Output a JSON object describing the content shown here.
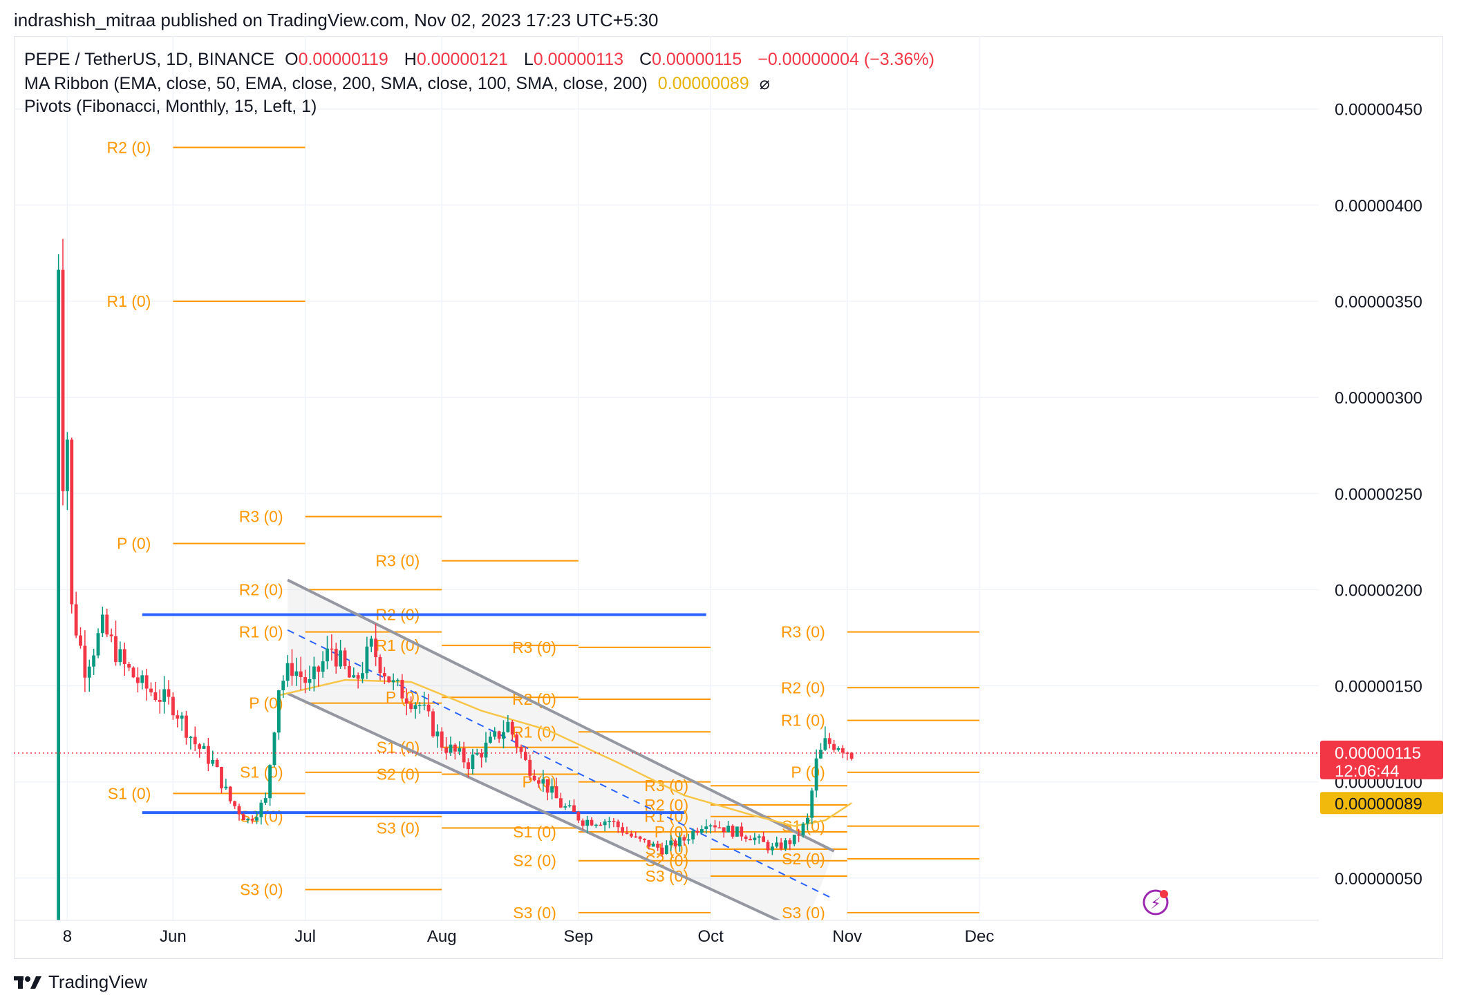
{
  "header": "indrashish_mitraa published on TradingView.com, Nov 02, 2023 17:23 UTC+5:30",
  "legend": {
    "symbol": "PEPE / TetherUS, 1D, BINANCE",
    "o_label": "O",
    "o": "0.00000119",
    "h_label": "H",
    "h": "0.00000121",
    "l_label": "L",
    "l": "0.00000113",
    "c_label": "C",
    "c": "0.00000115",
    "change": "−0.00000004 (−3.36%)",
    "ma": "MA Ribbon (EMA, close, 50, EMA, close, 200, SMA, close, 100, SMA, close, 200)",
    "ma_value": "0.00000089",
    "ma_symbol": "⌀",
    "pivots": "Pivots (Fibonacci, Monthly, 15, Left, 1)"
  },
  "footer": {
    "brand": "TradingView"
  },
  "colors": {
    "up": "#089981",
    "down": "#f23645",
    "pivot": "#ff9800",
    "ma": "#f7c548",
    "channel": "#9598a1",
    "blue": "#2962ff",
    "price_tag": "#f23645",
    "ma_tag": "#f0b90b"
  },
  "chart_data": {
    "type": "candlestick",
    "title": "PEPE / TetherUS, 1D, BINANCE",
    "x_labels": [
      {
        "label": "8",
        "date": "2023-05-08"
      },
      {
        "label": "Jun",
        "date": "2023-06-01"
      },
      {
        "label": "Jul",
        "date": "2023-07-01"
      },
      {
        "label": "Aug",
        "date": "2023-08-01"
      },
      {
        "label": "Sep",
        "date": "2023-09-01"
      },
      {
        "label": "Oct",
        "date": "2023-10-01"
      },
      {
        "label": "Nov",
        "date": "2023-11-01"
      },
      {
        "label": "Dec",
        "date": "2023-12-01"
      }
    ],
    "y_ticks": [
      "0.00000050",
      "0.00000100",
      "0.00000150",
      "0.00000200",
      "0.00000250",
      "0.00000300",
      "0.00000350",
      "0.00000400",
      "0.00000450"
    ],
    "ylim": [
      2.8e-07,
      4.88e-06
    ],
    "xlim": [
      "2023-04-29",
      "2023-12-01"
    ],
    "grid": true,
    "close_path": [
      [
        "2023-05-05",
        2e-07
      ],
      [
        "2023-05-06",
        3.74e-06
      ],
      [
        "2023-05-07",
        2.6e-06
      ],
      [
        "2023-05-08",
        2.8e-06
      ],
      [
        "2023-05-09",
        1.9e-06
      ],
      [
        "2023-05-12",
        1.6e-06
      ],
      [
        "2023-05-16",
        1.8e-06
      ],
      [
        "2023-05-21",
        1.6e-06
      ],
      [
        "2023-05-25",
        1.5e-06
      ],
      [
        "2023-06-01",
        1.4e-06
      ],
      [
        "2023-06-06",
        1.2e-06
      ],
      [
        "2023-06-10",
        1.1e-06
      ],
      [
        "2023-06-14",
        9e-07
      ],
      [
        "2023-06-18",
        8e-07
      ],
      [
        "2023-06-22",
        9e-07
      ],
      [
        "2023-06-25",
        1.5e-06
      ],
      [
        "2023-06-28",
        1.6e-06
      ],
      [
        "2023-07-02",
        1.5e-06
      ],
      [
        "2023-07-07",
        1.7e-06
      ],
      [
        "2023-07-12",
        1.5e-06
      ],
      [
        "2023-07-16",
        1.7e-06
      ],
      [
        "2023-07-21",
        1.5e-06
      ],
      [
        "2023-07-27",
        1.4e-06
      ],
      [
        "2023-08-01",
        1.2e-06
      ],
      [
        "2023-08-07",
        1.1e-06
      ],
      [
        "2023-08-12",
        1.2e-06
      ],
      [
        "2023-08-16",
        1.3e-06
      ],
      [
        "2023-08-20",
        1.1e-06
      ],
      [
        "2023-08-24",
        1e-06
      ],
      [
        "2023-08-28",
        8.8e-07
      ],
      [
        "2023-09-02",
        8e-07
      ],
      [
        "2023-09-08",
        8e-07
      ],
      [
        "2023-09-14",
        7e-07
      ],
      [
        "2023-09-20",
        6.5e-07
      ],
      [
        "2023-09-25",
        7e-07
      ],
      [
        "2023-09-30",
        8e-07
      ],
      [
        "2023-10-05",
        7.5e-07
      ],
      [
        "2023-10-10",
        7.2e-07
      ],
      [
        "2023-10-15",
        6.5e-07
      ],
      [
        "2023-10-20",
        7e-07
      ],
      [
        "2023-10-23",
        8e-07
      ],
      [
        "2023-10-25",
        1.1e-06
      ],
      [
        "2023-10-27",
        1.2e-06
      ],
      [
        "2023-10-30",
        1.2e-06
      ],
      [
        "2023-11-02",
        1.15e-06
      ]
    ],
    "ma_path": [
      [
        "2023-06-25",
        1.45e-06
      ],
      [
        "2023-07-10",
        1.53e-06
      ],
      [
        "2023-07-25",
        1.52e-06
      ],
      [
        "2023-08-10",
        1.37e-06
      ],
      [
        "2023-08-25",
        1.27e-06
      ],
      [
        "2023-09-10",
        1.1e-06
      ],
      [
        "2023-09-25",
        9.3e-07
      ],
      [
        "2023-10-10",
        8.3e-07
      ],
      [
        "2023-10-20",
        7.7e-07
      ],
      [
        "2023-10-27",
        8e-07
      ],
      [
        "2023-11-02",
        8.9e-07
      ]
    ],
    "pivot_levels": [
      {
        "label": "R2 (0)",
        "start": "2023-06-01",
        "end": "2023-07-01",
        "value": 4.3e-06
      },
      {
        "label": "R1 (0)",
        "start": "2023-06-01",
        "end": "2023-07-01",
        "value": 3.5e-06
      },
      {
        "label": "P (0)",
        "start": "2023-06-01",
        "end": "2023-07-01",
        "value": 2.24e-06
      },
      {
        "label": "S1 (0)",
        "start": "2023-06-01",
        "end": "2023-07-01",
        "value": 9.4e-07
      },
      {
        "label": "R3 (0)",
        "start": "2023-07-01",
        "end": "2023-08-01",
        "value": 2.38e-06
      },
      {
        "label": "R2 (0)",
        "start": "2023-07-01",
        "end": "2023-08-01",
        "value": 2e-06
      },
      {
        "label": "R1 (0)",
        "start": "2023-07-01",
        "end": "2023-08-01",
        "value": 1.78e-06
      },
      {
        "label": "P (0)",
        "start": "2023-07-01",
        "end": "2023-08-01",
        "value": 1.41e-06
      },
      {
        "label": "S1 (0)",
        "start": "2023-07-01",
        "end": "2023-08-01",
        "value": 1.05e-06
      },
      {
        "label": "S2 (0)",
        "start": "2023-07-01",
        "end": "2023-08-01",
        "value": 8.2e-07
      },
      {
        "label": "S3 (0)",
        "start": "2023-07-01",
        "end": "2023-08-01",
        "value": 4.4e-07
      },
      {
        "label": "R3 (0)",
        "start": "2023-08-01",
        "end": "2023-09-01",
        "value": 2.15e-06
      },
      {
        "label": "R2 (0)",
        "start": "2023-08-01",
        "end": "2023-09-01",
        "value": 1.87e-06
      },
      {
        "label": "R1 (0)",
        "start": "2023-08-01",
        "end": "2023-09-01",
        "value": 1.71e-06
      },
      {
        "label": "P (0)",
        "start": "2023-08-01",
        "end": "2023-09-01",
        "value": 1.44e-06
      },
      {
        "label": "S1 (0)",
        "start": "2023-08-01",
        "end": "2023-09-01",
        "value": 1.18e-06
      },
      {
        "label": "S2 (0)",
        "start": "2023-08-01",
        "end": "2023-09-01",
        "value": 1.04e-06
      },
      {
        "label": "S3 (0)",
        "start": "2023-08-01",
        "end": "2023-09-01",
        "value": 7.6e-07
      },
      {
        "label": "R3 (0)",
        "start": "2023-09-01",
        "end": "2023-10-01",
        "value": 1.7e-06
      },
      {
        "label": "R2 (0)",
        "start": "2023-09-01",
        "end": "2023-10-01",
        "value": 1.43e-06
      },
      {
        "label": "R1 (0)",
        "start": "2023-09-01",
        "end": "2023-10-01",
        "value": 1.26e-06
      },
      {
        "label": "P (0)",
        "start": "2023-09-01",
        "end": "2023-10-01",
        "value": 1e-06
      },
      {
        "label": "S1 (0)",
        "start": "2023-09-01",
        "end": "2023-10-01",
        "value": 7.4e-07
      },
      {
        "label": "S2 (0)",
        "start": "2023-09-01",
        "end": "2023-10-01",
        "value": 5.9e-07
      },
      {
        "label": "S3 (0)",
        "start": "2023-09-01",
        "end": "2023-10-01",
        "value": 3.2e-07
      },
      {
        "label": "R3 (0)",
        "start": "2023-10-01",
        "end": "2023-11-01",
        "value": 9.8e-07
      },
      {
        "label": "R2 (0)",
        "start": "2023-10-01",
        "end": "2023-11-01",
        "value": 8.8e-07
      },
      {
        "label": "R1 (0)",
        "start": "2023-10-01",
        "end": "2023-11-01",
        "value": 8.2e-07
      },
      {
        "label": "P (0)",
        "start": "2023-10-01",
        "end": "2023-11-01",
        "value": 7.4e-07
      },
      {
        "label": "S1 (0)",
        "start": "2023-10-01",
        "end": "2023-11-01",
        "value": 6.5e-07
      },
      {
        "label": "S2 (0)",
        "start": "2023-10-01",
        "end": "2023-11-01",
        "value": 5.9e-07
      },
      {
        "label": "S3 (0)",
        "start": "2023-10-01",
        "end": "2023-11-01",
        "value": 5.1e-07
      },
      {
        "label": "R3 (0)",
        "start": "2023-11-01",
        "end": "2023-12-01",
        "value": 1.78e-06
      },
      {
        "label": "R2 (0)",
        "start": "2023-11-01",
        "end": "2023-12-01",
        "value": 1.49e-06
      },
      {
        "label": "R1 (0)",
        "start": "2023-11-01",
        "end": "2023-12-01",
        "value": 1.32e-06
      },
      {
        "label": "P (0)",
        "start": "2023-11-01",
        "end": "2023-12-01",
        "value": 1.05e-06
      },
      {
        "label": "S1 (0)",
        "start": "2023-11-01",
        "end": "2023-12-01",
        "value": 7.7e-07
      },
      {
        "label": "S2 (0)",
        "start": "2023-11-01",
        "end": "2023-12-01",
        "value": 6e-07
      },
      {
        "label": "S3 (0)",
        "start": "2023-11-01",
        "end": "2023-12-01",
        "value": 3.2e-07
      }
    ],
    "horizontal_lines": [
      {
        "start": "2023-05-25",
        "end": "2023-09-30",
        "value": 1.87e-06
      },
      {
        "start": "2023-05-25",
        "end": "2023-09-25",
        "value": 8.4e-07
      }
    ],
    "channel": {
      "upper": [
        [
          "2023-06-27",
          2.05e-06
        ],
        [
          "2023-10-29",
          6.4e-07
        ]
      ],
      "lower": [
        [
          "2023-06-27",
          1.46e-06
        ],
        [
          "2023-10-22",
          2.2e-07
        ]
      ],
      "middle": [
        [
          "2023-06-27",
          1.79e-06
        ],
        [
          "2023-10-29",
          3.9e-07
        ]
      ]
    },
    "last_price": {
      "value": 1.15e-06,
      "label": "0.00000115",
      "countdown": "12:06:44"
    },
    "ma_last": {
      "value": 8.9e-07,
      "label": "0.00000089"
    }
  }
}
